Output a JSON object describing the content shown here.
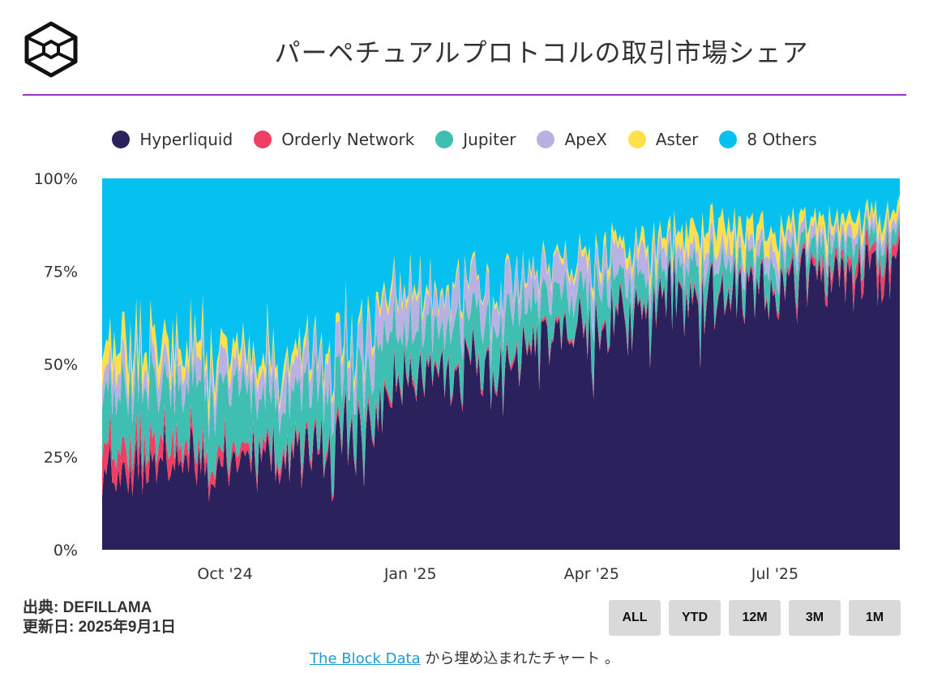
{
  "header": {
    "title": "パーペチュアルプロトコルの取引市場シェア"
  },
  "colors": {
    "accent_rule": "#9b2fc9",
    "Hyperliquid": "#2b215c",
    "Orderly Network": "#ef3f64",
    "Jupiter": "#3fbfb2",
    "ApeX": "#b9b0e3",
    "Aster": "#fde04a",
    "8 Others": "#06c1ef"
  },
  "chart_data": {
    "type": "area",
    "stacked": "percent",
    "title": "パーペチュアルプロトコルの取引市場シェア",
    "legend": [
      "Hyperliquid",
      "Orderly Network",
      "Jupiter",
      "ApeX",
      "Aster",
      "8 Others"
    ],
    "legend_position": "top",
    "y_ticks": [
      "0%",
      "25%",
      "50%",
      "75%",
      "100%"
    ],
    "ylim": [
      0,
      100
    ],
    "x_ticks": [
      "Oct '24",
      "Jan '25",
      "Apr '25",
      "Jul '25"
    ],
    "x_range": [
      "2024-08-01",
      "2025-09-01"
    ],
    "x_tick_dates": [
      "2024-10-01",
      "2025-01-01",
      "2025-04-01",
      "2025-07-01"
    ],
    "series_knots_percent": {
      "dates": [
        "2024-08-01",
        "2024-09-01",
        "2024-10-01",
        "2024-11-01",
        "2024-12-01",
        "2025-01-01",
        "2025-02-01",
        "2025-03-01",
        "2025-04-01",
        "2025-05-01",
        "2025-06-01",
        "2025-07-01",
        "2025-08-01",
        "2025-09-01"
      ],
      "Hyperliquid": [
        22,
        24,
        25,
        26,
        32,
        46,
        50,
        54,
        60,
        66,
        70,
        71,
        76,
        78
      ],
      "Orderly Network": [
        7,
        5,
        3,
        2,
        1.5,
        1,
        1,
        1,
        1,
        1,
        1,
        1,
        3,
        4
      ],
      "Jupiter": [
        15,
        16,
        17,
        16,
        14,
        12,
        12,
        11,
        10,
        8,
        7,
        7,
        5,
        4
      ],
      "ApeX": [
        6,
        6,
        6,
        7,
        8,
        9,
        8,
        7,
        7,
        6,
        4,
        4,
        3,
        3
      ],
      "Aster": [
        6,
        5,
        4,
        3,
        2,
        2,
        1,
        1,
        2,
        3,
        6,
        4,
        3,
        3
      ],
      "8 Others": [
        44,
        44,
        45,
        46,
        42.5,
        30,
        28,
        26,
        20,
        16,
        12,
        13,
        10,
        8
      ]
    }
  },
  "source": {
    "line1": "出典: DEFILLAMA",
    "line2": "更新日: 2025年9月1日"
  },
  "range_buttons": [
    "ALL",
    "YTD",
    "12M",
    "3M",
    "1M"
  ],
  "footer": {
    "link_text": "The Block Data",
    "rest_text": " から埋め込まれたチャート 。"
  }
}
